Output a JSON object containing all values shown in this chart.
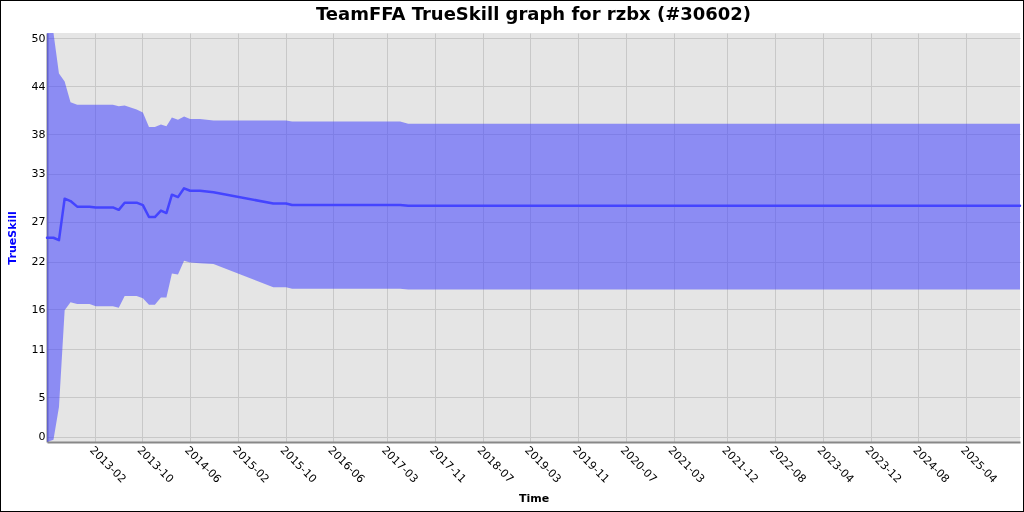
{
  "chart_data": {
    "type": "line",
    "title": "TeamFFA TrueSkill graph for rzbx (#30602)",
    "xlabel": "Time",
    "ylabel": "TrueSkill",
    "x": [
      "2012-06-01",
      "2012-07-04",
      "2012-08-01",
      "2012-08-30",
      "2012-09-29",
      "2012-11-02",
      "2013-01-04",
      "2013-02-05",
      "2013-05-03",
      "2013-06-02",
      "2013-07-02",
      "2013-09-01",
      "2013-10-03",
      "2013-11-03",
      "2013-12-03",
      "2014-01-03",
      "2014-01-31",
      "2014-02-28",
      "2014-03-31",
      "2014-05-01",
      "2014-06-01",
      "2014-07-21",
      "2014-09-28",
      "2015-07-30",
      "2015-10-03",
      "2015-11-03",
      "2017-05-07",
      "2017-06-17",
      "2026-01-01"
    ],
    "series": [
      {
        "color": "#4444ff",
        "values": [
          25.0,
          25.0,
          24.7,
          29.9,
          29.6,
          28.9,
          28.9,
          28.8,
          28.8,
          28.5,
          29.4,
          29.4,
          29.1,
          27.6,
          27.6,
          28.4,
          28.1,
          30.4,
          30.1,
          31.2,
          30.9,
          30.9,
          30.7,
          29.3,
          29.3,
          29.1,
          29.1,
          29.0,
          29.0
        ],
        "lower": [
          -0.63,
          -0.36,
          3.75,
          15.9,
          16.9,
          16.7,
          16.7,
          16.4,
          16.4,
          16.2,
          17.7,
          17.7,
          17.4,
          16.6,
          16.6,
          17.5,
          17.5,
          20.5,
          20.4,
          22.1,
          21.9,
          21.8,
          21.7,
          18.8,
          18.8,
          18.6,
          18.6,
          18.5,
          18.5
        ],
        "upper": [
          50.69,
          50.69,
          45.6,
          44.6,
          42.0,
          41.7,
          41.7,
          41.7,
          41.7,
          41.5,
          41.6,
          41.1,
          40.7,
          38.9,
          38.9,
          39.2,
          39.0,
          40.1,
          39.8,
          40.2,
          39.9,
          39.9,
          39.7,
          39.7,
          39.7,
          39.6,
          39.6,
          39.3,
          39.3
        ]
      }
    ],
    "xlim": [
      "2012-06-01",
      "2026-01-01"
    ],
    "xticks": [
      {
        "value": "2013-02-01",
        "label": "2013-02"
      },
      {
        "value": "2013-10-01",
        "label": "2013-10"
      },
      {
        "value": "2014-06-01",
        "label": "2014-06"
      },
      {
        "value": "2015-02-01",
        "label": "2015-02"
      },
      {
        "value": "2015-10-01",
        "label": "2015-10"
      },
      {
        "value": "2016-06-01",
        "label": "2016-06"
      },
      {
        "value": "2017-03-01",
        "label": "2017-03"
      },
      {
        "value": "2017-11-01",
        "label": "2017-11"
      },
      {
        "value": "2018-07-01",
        "label": "2018-07"
      },
      {
        "value": "2019-03-01",
        "label": "2019-03"
      },
      {
        "value": "2019-11-01",
        "label": "2019-11"
      },
      {
        "value": "2020-07-01",
        "label": "2020-07"
      },
      {
        "value": "2021-03-01",
        "label": "2021-03"
      },
      {
        "value": "2021-12-01",
        "label": "2021-12"
      },
      {
        "value": "2022-08-01",
        "label": "2022-08"
      },
      {
        "value": "2023-04-01",
        "label": "2023-04"
      },
      {
        "value": "2023-12-01",
        "label": "2023-12"
      },
      {
        "value": "2024-08-01",
        "label": "2024-08"
      },
      {
        "value": "2025-04-01",
        "label": "2025-04"
      }
    ],
    "ylim": [
      -0.63,
      50.69
    ],
    "yticks": [
      0,
      5,
      11,
      16,
      22,
      27,
      33,
      38,
      44,
      50
    ],
    "grid": true,
    "marker": "none",
    "line_style": "solid"
  }
}
